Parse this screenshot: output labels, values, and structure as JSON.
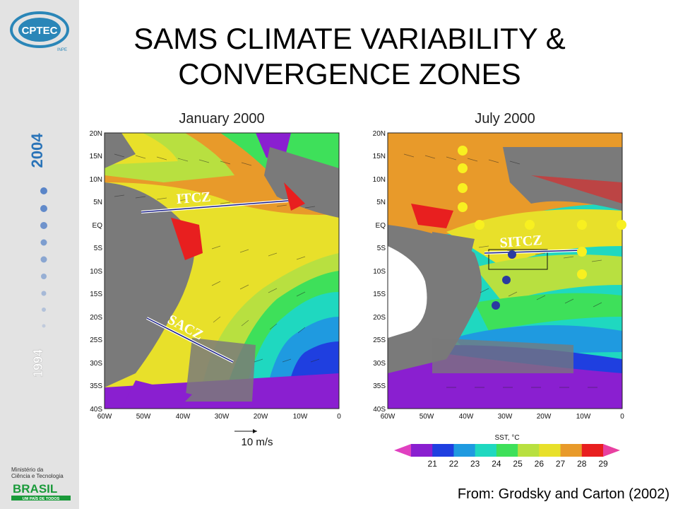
{
  "title": {
    "line1": "SAMS CLIMATE VARIABILITY &",
    "line2": "CONVERGENCE ZONES"
  },
  "sidebar": {
    "logo_text": "CPTEC",
    "logo_subtext": "INPE",
    "year_start": "1994",
    "year_end": "2004",
    "ministry_line1": "Ministério da",
    "ministry_line2": "Ciência e Tecnologia",
    "brasil_text": "BRASIL",
    "brasil_slogan": "UM PAÍS DE TODOS"
  },
  "maps": [
    {
      "title": "January 2000",
      "labels": [
        "ITCZ",
        "SACZ"
      ],
      "lon_ticks": [
        "60W",
        "50W",
        "40W",
        "30W",
        "20W",
        "10W",
        "0"
      ],
      "lat_ticks": [
        "20N",
        "15N",
        "10N",
        "5N",
        "EQ",
        "5S",
        "10S",
        "15S",
        "20S",
        "25S",
        "30S",
        "35S",
        "40S"
      ],
      "vector_scale": "10 m/s"
    },
    {
      "title": "July 2000",
      "labels": [
        "SITCZ"
      ],
      "lon_ticks": [
        "60W",
        "50W",
        "40W",
        "30W",
        "20W",
        "10W",
        "0"
      ],
      "lat_ticks": [
        "20N",
        "15N",
        "10N",
        "5N",
        "EQ",
        "5S",
        "10S",
        "15S",
        "20S",
        "25S",
        "30S",
        "35S",
        "40S"
      ]
    }
  ],
  "colorbar": {
    "title": "SST, °C",
    "ticks": [
      "21",
      "22",
      "23",
      "24",
      "25",
      "26",
      "27",
      "28",
      "29"
    ],
    "colors": [
      "#e040c0",
      "#8a1fd0",
      "#1f3fe0",
      "#1f9ae0",
      "#1fd8c0",
      "#3ee05a",
      "#b8e040",
      "#e8e02a",
      "#e89a2a",
      "#e81f1f",
      "#e840a0"
    ]
  },
  "credit": "From: Grodsky and Carton (2002)"
}
